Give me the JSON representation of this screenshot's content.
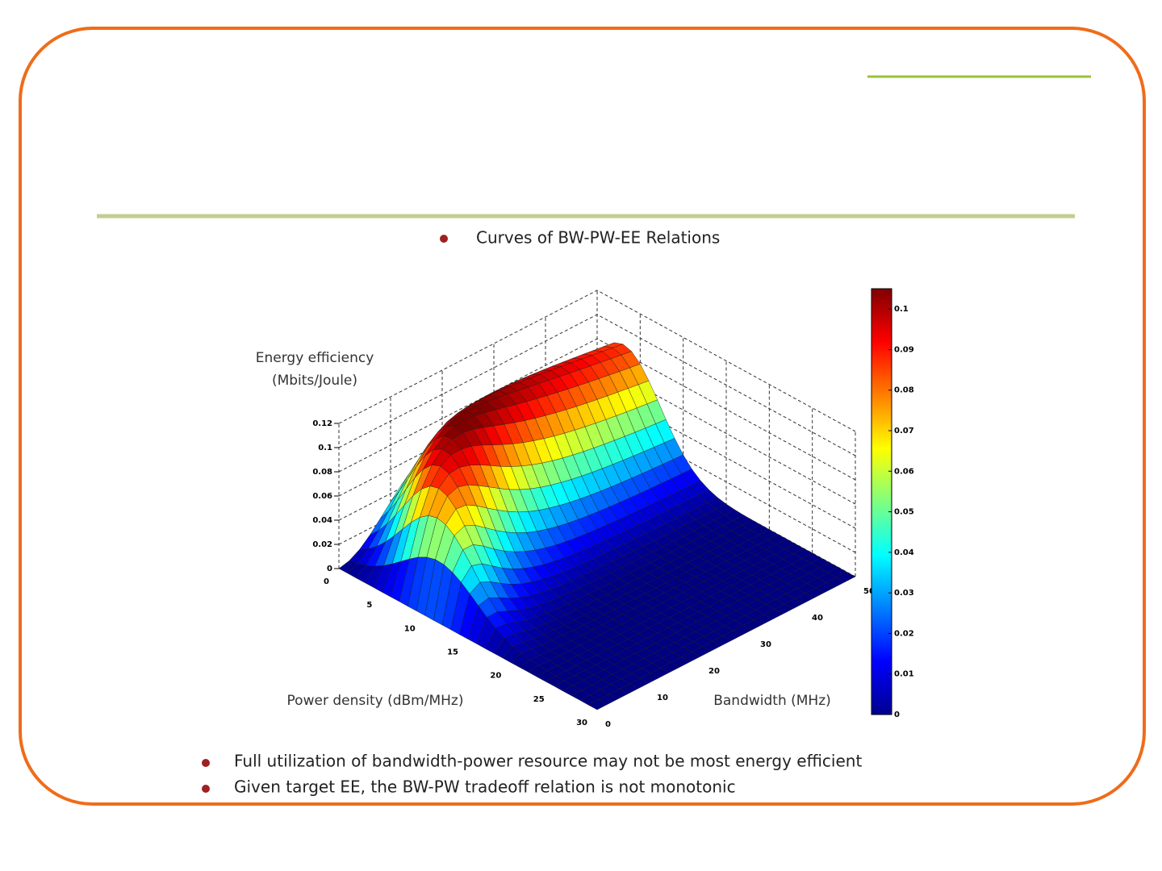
{
  "slide": {
    "heading": "Curves of BW-PW-EE Relations",
    "bullets": [
      "Full utilization of bandwidth-power resource may not be most energy efficient",
      "Given target EE, the BW-PW tradeoff relation is not monotonic"
    ]
  },
  "chart_data": {
    "type": "surface",
    "zlabel": [
      "Energy efficiency",
      "(Mbits/Joule)"
    ],
    "xlabel": "Power density (dBm/MHz)",
    "ylabel": "Bandwidth (MHz)",
    "xlim": [
      0,
      30
    ],
    "xticks": [
      0,
      5,
      10,
      15,
      20,
      25,
      30
    ],
    "ylim": [
      0,
      50
    ],
    "yticks": [
      0,
      10,
      20,
      30,
      40,
      50
    ],
    "zlim": [
      0,
      0.12
    ],
    "zticks": [
      0,
      0.02,
      0.04,
      0.06,
      0.08,
      0.1,
      0.12
    ],
    "colorbar_lim": [
      0,
      0.105
    ],
    "colorbar_ticks": [
      0,
      0.01,
      0.02,
      0.03,
      0.04,
      0.05,
      0.06,
      0.07,
      0.08,
      0.09,
      0.1
    ],
    "grid": true
  }
}
